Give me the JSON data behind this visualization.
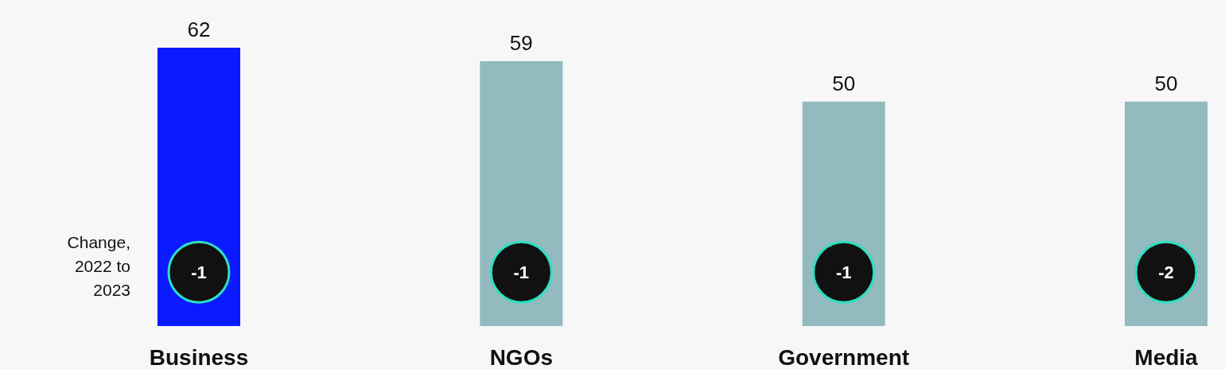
{
  "chart_data": {
    "type": "bar",
    "categories": [
      "Business",
      "NGOs",
      "Government",
      "Media"
    ],
    "values": [
      62,
      59,
      50,
      50
    ],
    "colors": [
      "#0a1aff",
      "#93babf",
      "#93babf",
      "#93babf"
    ],
    "data_labels": true,
    "annotations": [
      "Change, 2022 to 2023",
      "-1",
      "-1",
      "-1",
      "-2"
    ]
  }
}
